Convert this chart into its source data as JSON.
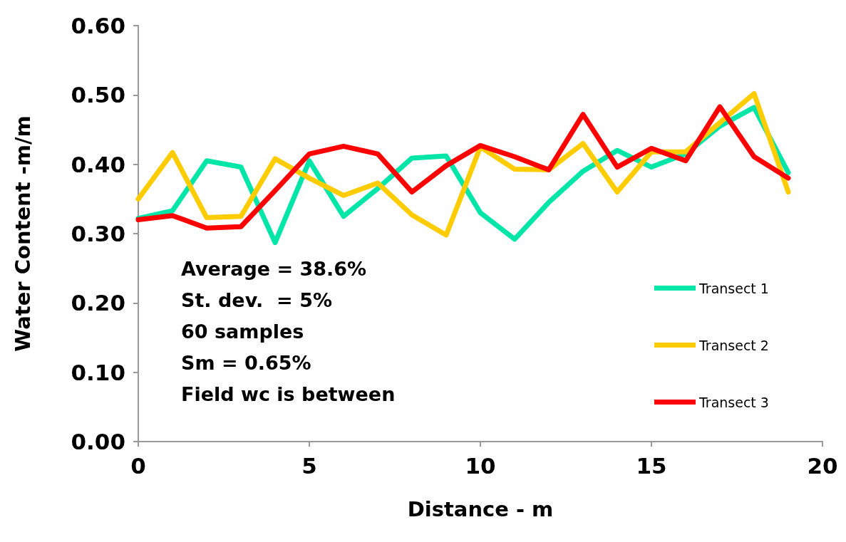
{
  "chart_data": {
    "type": "line",
    "xlabel": "Distance - m",
    "ylabel": "Water Content -m/m",
    "x": [
      0,
      1,
      2,
      3,
      4,
      5,
      6,
      7,
      8,
      9,
      10,
      11,
      12,
      13,
      14,
      15,
      16,
      17,
      18,
      19
    ],
    "series": [
      {
        "name": "Transect 1",
        "color": "#00e6a8",
        "values": [
          0.322,
          0.333,
          0.405,
          0.396,
          0.287,
          0.405,
          0.325,
          0.365,
          0.409,
          0.412,
          0.33,
          0.292,
          0.345,
          0.39,
          0.42,
          0.396,
          0.415,
          0.455,
          0.482,
          0.388
        ]
      },
      {
        "name": "Transect 2",
        "color": "#ffcc00",
        "values": [
          0.35,
          0.417,
          0.323,
          0.325,
          0.408,
          0.38,
          0.355,
          0.373,
          0.327,
          0.298,
          0.425,
          0.393,
          0.392,
          0.43,
          0.36,
          0.418,
          0.418,
          0.46,
          0.502,
          0.36
        ]
      },
      {
        "name": "Transect 3",
        "color": "#ff0000",
        "values": [
          0.32,
          0.326,
          0.308,
          0.31,
          0.362,
          0.415,
          0.426,
          0.415,
          0.36,
          0.398,
          0.427,
          0.411,
          0.392,
          0.472,
          0.396,
          0.423,
          0.405,
          0.483,
          0.411,
          0.38
        ]
      }
    ],
    "xlim": [
      0,
      20
    ],
    "xticks": [
      0,
      5,
      10,
      15,
      20
    ],
    "ylim": [
      0,
      0.6
    ],
    "yticks": [
      {
        "value": 0,
        "label": "0.00"
      },
      {
        "value": 0.1,
        "label": "0.10"
      },
      {
        "value": 0.2,
        "label": "0.20"
      },
      {
        "value": 0.3,
        "label": "0.30"
      },
      {
        "value": 0.4,
        "label": "0.40"
      },
      {
        "value": 0.5,
        "label": "0.50"
      },
      {
        "value": 0.6,
        "label": "0.60"
      }
    ],
    "annotations": [
      "Average = 38.6%",
      "St. dev.  = 5%",
      "60 samples",
      "Sm = 0.65%",
      "Field wc is between"
    ],
    "grid": false,
    "legend": "right",
    "marker": "none",
    "line_style": "solid"
  }
}
